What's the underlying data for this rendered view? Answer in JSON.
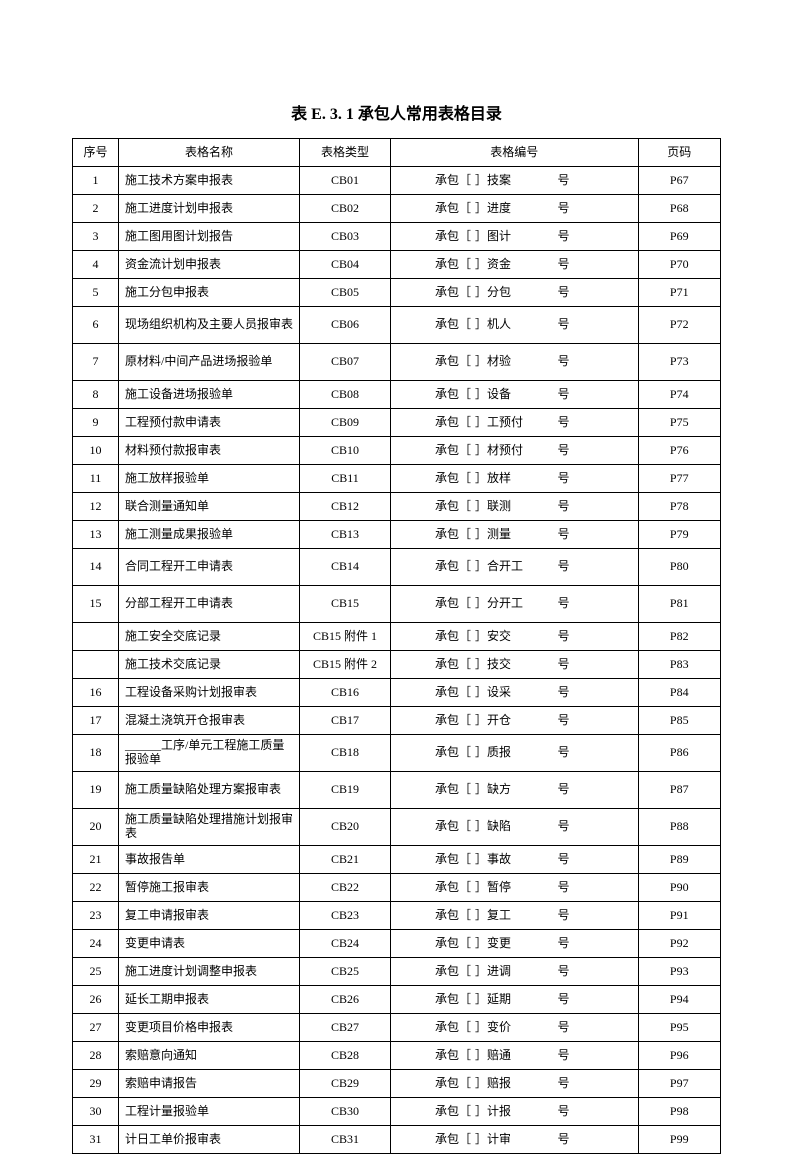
{
  "title": "表 E. 3. 1    承包人常用表格目录",
  "headers": {
    "seq": "序号",
    "name": "表格名称",
    "type": "表格类型",
    "code": "表格编号",
    "page": "页码"
  },
  "code_parts": {
    "prefix": "承包［",
    "bracket_close": "］",
    "suffix": "号"
  },
  "rows": [
    {
      "seq": "1",
      "name": "施工技术方案申报表",
      "type": "CB01",
      "code": "技案",
      "page": "P67",
      "tall": false
    },
    {
      "seq": "2",
      "name": "施工进度计划申报表",
      "type": "CB02",
      "code": "进度",
      "page": "P68",
      "tall": false
    },
    {
      "seq": "3",
      "name": "施工图用图计划报告",
      "type": "CB03",
      "code": "图计",
      "page": "P69",
      "tall": false
    },
    {
      "seq": "4",
      "name": "资金流计划申报表",
      "type": "CB04",
      "code": "资金",
      "page": "P70",
      "tall": false
    },
    {
      "seq": "5",
      "name": "施工分包申报表",
      "type": "CB05",
      "code": "分包",
      "page": "P71",
      "tall": false
    },
    {
      "seq": "6",
      "name": "现场组织机构及主要人员报审表",
      "type": "CB06",
      "code": "机人",
      "page": "P72",
      "tall": true
    },
    {
      "seq": "7",
      "name": "原材料/中间产品进场报验单",
      "type": "CB07",
      "code": "材验",
      "page": "P73",
      "tall": true
    },
    {
      "seq": "8",
      "name": "施工设备进场报验单",
      "type": "CB08",
      "code": "设备",
      "page": "P74",
      "tall": false
    },
    {
      "seq": "9",
      "name": "工程预付款申请表",
      "type": "CB09",
      "code": "工预付",
      "page": "P75",
      "tall": false
    },
    {
      "seq": "10",
      "name": "材料预付款报审表",
      "type": "CB10",
      "code": "材预付",
      "page": "P76",
      "tall": false
    },
    {
      "seq": "11",
      "name": "施工放样报验单",
      "type": "CB11",
      "code": "放样",
      "page": "P77",
      "tall": false
    },
    {
      "seq": "12",
      "name": "联合测量通知单",
      "type": "CB12",
      "code": "联测",
      "page": "P78",
      "tall": false
    },
    {
      "seq": "13",
      "name": "施工测量成果报验单",
      "type": "CB13",
      "code": "测量",
      "page": "P79",
      "tall": false
    },
    {
      "seq": "14",
      "name": "合同工程开工申请表",
      "type": "CB14",
      "code": "合开工",
      "page": "P80",
      "tall": true
    },
    {
      "seq": "15",
      "name": "分部工程开工申请表",
      "type": "CB15",
      "code": "分开工",
      "page": "P81",
      "tall": true
    },
    {
      "seq": "",
      "name": "施工安全交底记录",
      "type": "CB15 附件 1",
      "code": "安交",
      "page": "P82",
      "tall": false
    },
    {
      "seq": "",
      "name": "施工技术交底记录",
      "type": "CB15 附件 2",
      "code": "技交",
      "page": "P83",
      "tall": false
    },
    {
      "seq": "16",
      "name": "工程设备采购计划报审表",
      "type": "CB16",
      "code": "设采",
      "page": "P84",
      "tall": false
    },
    {
      "seq": "17",
      "name": "混凝土浇筑开仓报审表",
      "type": "CB17",
      "code": "开仓",
      "page": "P85",
      "tall": false
    },
    {
      "seq": "18",
      "name": "______工序/单元工程施工质量报验单",
      "type": "CB18",
      "code": "质报",
      "page": "P86",
      "tall": true
    },
    {
      "seq": "19",
      "name": "施工质量缺陷处理方案报审表",
      "type": "CB19",
      "code": "缺方",
      "page": "P87",
      "tall": true
    },
    {
      "seq": "20",
      "name": "施工质量缺陷处理措施计划报审表",
      "type": "CB20",
      "code": "缺陷",
      "page": "P88",
      "tall": true
    },
    {
      "seq": "21",
      "name": "事故报告单",
      "type": "CB21",
      "code": "事故",
      "page": "P89",
      "tall": false
    },
    {
      "seq": "22",
      "name": "暂停施工报审表",
      "type": "CB22",
      "code": "暂停",
      "page": "P90",
      "tall": false
    },
    {
      "seq": "23",
      "name": "复工申请报审表",
      "type": "CB23",
      "code": "复工",
      "page": "P91",
      "tall": false
    },
    {
      "seq": "24",
      "name": "变更申请表",
      "type": "CB24",
      "code": "变更",
      "page": "P92",
      "tall": false
    },
    {
      "seq": "25",
      "name": "施工进度计划调整申报表",
      "type": "CB25",
      "code": "进调",
      "page": "P93",
      "tall": false
    },
    {
      "seq": "26",
      "name": "延长工期申报表",
      "type": "CB26",
      "code": "延期",
      "page": "P94",
      "tall": false
    },
    {
      "seq": "27",
      "name": "变更项目价格申报表",
      "type": "CB27",
      "code": "变价",
      "page": "P95",
      "tall": false
    },
    {
      "seq": "28",
      "name": "索赔意向通知",
      "type": "CB28",
      "code": "赔通",
      "page": "P96",
      "tall": false
    },
    {
      "seq": "29",
      "name": "索赔申请报告",
      "type": "CB29",
      "code": "赔报",
      "page": "P97",
      "tall": false
    },
    {
      "seq": "30",
      "name": "工程计量报验单",
      "type": "CB30",
      "code": "计报",
      "page": "P98",
      "tall": false
    },
    {
      "seq": "31",
      "name": "计日工单价报审表",
      "type": "CB31",
      "code": "计审",
      "page": "P99",
      "tall": false
    }
  ]
}
